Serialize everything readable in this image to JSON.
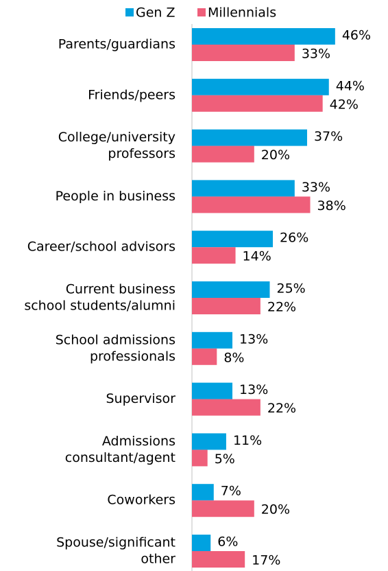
{
  "chart_data": {
    "type": "bar",
    "orientation": "horizontal",
    "categories": [
      [
        "Parents/guardians"
      ],
      [
        "Friends/peers"
      ],
      [
        "College/university",
        "professors"
      ],
      [
        "People in business"
      ],
      [
        "Career/school advisors"
      ],
      [
        "Current business",
        "school students/alumni"
      ],
      [
        "School admissions",
        "professionals"
      ],
      [
        "Supervisor"
      ],
      [
        "Admissions",
        "consultant/agent"
      ],
      [
        "Coworkers"
      ],
      [
        "Spouse/significant",
        "other"
      ]
    ],
    "series": [
      {
        "name": "Gen Z",
        "color": "#00a2e0",
        "values": [
          46,
          44,
          37,
          33,
          26,
          25,
          13,
          13,
          11,
          7,
          6
        ],
        "value_labels": [
          "46%",
          "44%",
          "37%",
          "33%",
          "26%",
          "25%",
          "13%",
          "13%",
          "11%",
          "7%",
          "6%"
        ]
      },
      {
        "name": "Millennials",
        "color": "#ef5f7a",
        "values": [
          33,
          42,
          20,
          38,
          14,
          22,
          8,
          22,
          5,
          20,
          17
        ],
        "value_labels": [
          "33%",
          "42%",
          "20%",
          "38%",
          "14%",
          "22%",
          "8%",
          "22%",
          "5%",
          "20%",
          "17%"
        ]
      }
    ],
    "xlim": [
      0,
      50
    ],
    "legend": "top"
  }
}
